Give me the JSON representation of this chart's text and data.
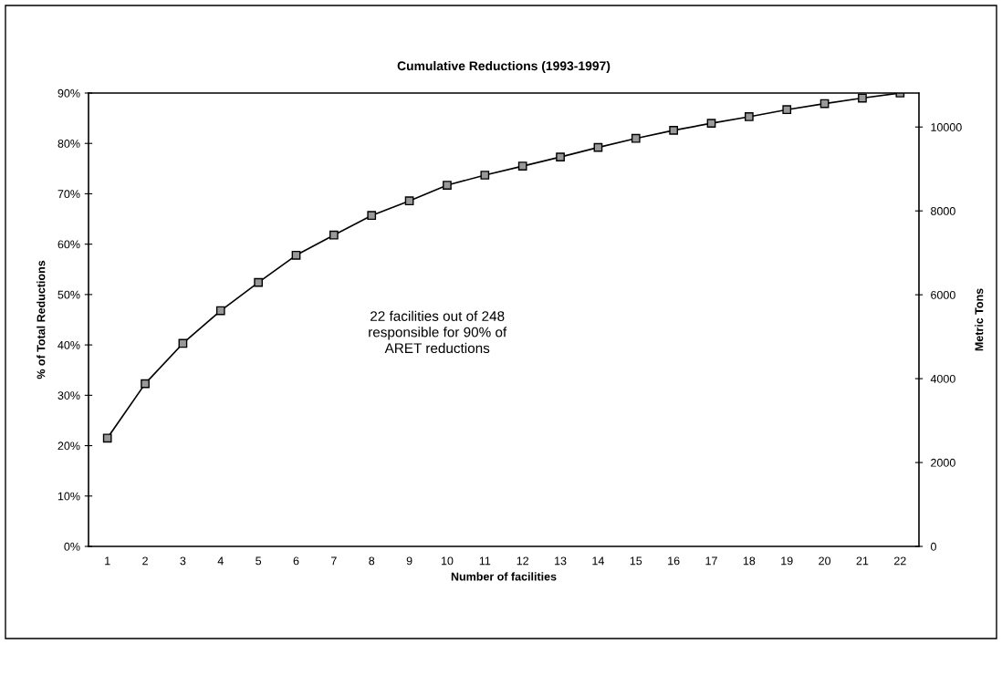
{
  "chart_data": {
    "type": "line",
    "title": "Cumulative Reductions (1993-1997)",
    "xlabel": "Number of facilities",
    "ylabel": "% of Total Reductions",
    "y2label": "Metric Tons",
    "categories": [
      "1",
      "2",
      "3",
      "4",
      "5",
      "6",
      "7",
      "8",
      "9",
      "10",
      "11",
      "12",
      "13",
      "14",
      "15",
      "16",
      "17",
      "18",
      "19",
      "20",
      "21",
      "22"
    ],
    "series": [
      {
        "color": "#000000",
        "values": [
          21.5,
          32.3,
          40.3,
          46.8,
          52.4,
          57.8,
          61.8,
          65.7,
          68.6,
          71.7,
          73.7,
          75.5,
          77.3,
          79.2,
          81.0,
          82.6,
          84.0,
          85.3,
          86.7,
          87.9,
          89.0,
          90.0
        ]
      }
    ],
    "ylim": [
      0,
      90
    ],
    "yticks": [
      {
        "value": 0,
        "label": "0%"
      },
      {
        "value": 10,
        "label": "10%"
      },
      {
        "value": 20,
        "label": "20%"
      },
      {
        "value": 30,
        "label": "30%"
      },
      {
        "value": 40,
        "label": "40%"
      },
      {
        "value": 50,
        "label": "50%"
      },
      {
        "value": 60,
        "label": "60%"
      },
      {
        "value": 70,
        "label": "70%"
      },
      {
        "value": 80,
        "label": "80%"
      },
      {
        "value": 90,
        "label": "90%"
      }
    ],
    "y2lim": [
      0,
      10810
    ],
    "y2ticks": [
      0,
      2000,
      4000,
      6000,
      8000,
      10000
    ],
    "annotations": [
      "22 facilities out of 248\nresponsible for 90% of\nARET reductions"
    ],
    "marker": "square",
    "line_style": "solid",
    "grid": false,
    "legend": false
  }
}
